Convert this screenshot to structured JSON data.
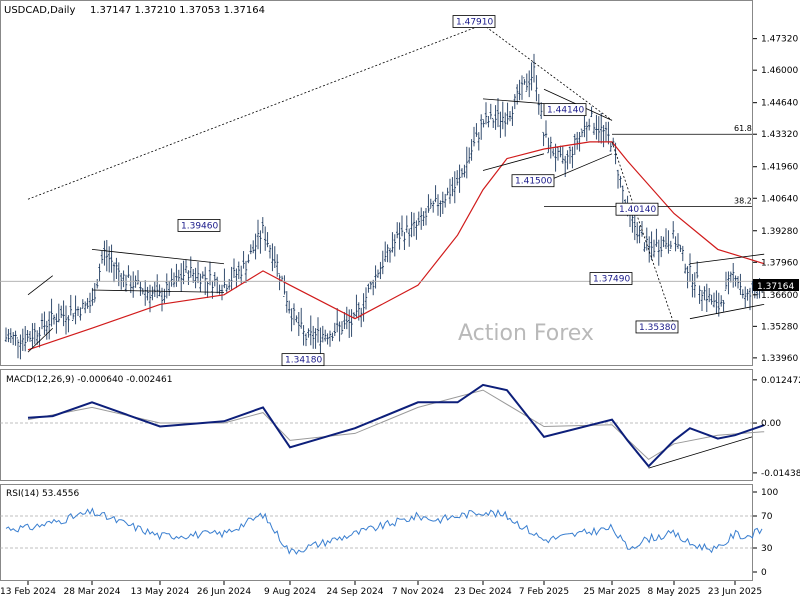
{
  "header": {
    "symbol": "USDCAD,Daily",
    "ohlc": "1.37147 1.37210 1.37053 1.37164"
  },
  "watermark": "Action Forex",
  "current_price": "1.37164",
  "chart_data": [
    {
      "type": "line",
      "panel": "price",
      "y_axis_ticks": [
        "1.47320",
        "1.46000",
        "1.44640",
        "1.43320",
        "1.41960",
        "1.40640",
        "1.39280",
        "1.37960",
        "1.36600",
        "1.35280",
        "1.33960"
      ],
      "x_axis_ticks": [
        "13 Feb 2024",
        "28 Mar 2024",
        "13 May 2024",
        "26 Jun 2024",
        "9 Aug 2024",
        "24 Sep 2024",
        "7 Nov 2024",
        "23 Dec 2024",
        "7 Feb 2025",
        "25 Mar 2025",
        "8 May 2025",
        "23 Jun 2025"
      ],
      "ylim": [
        1.3362,
        1.481
      ],
      "annotations": [
        {
          "label": "1.47910",
          "x": "23 Dec 2024",
          "y": 1.4791
        },
        {
          "label": "1.44140",
          "x": "7 Feb 2025",
          "y": 1.4414
        },
        {
          "label": "1.41500",
          "x": "7 Feb 2025",
          "y": 1.415
        },
        {
          "label": "1.40140",
          "x": "25 Mar 2025",
          "y": 1.4014
        },
        {
          "label": "1.39460",
          "x": "26 Jun 2024",
          "y": 1.3946
        },
        {
          "label": "1.37490",
          "x": "25 Mar 2025",
          "y": 1.3749
        },
        {
          "label": "1.35380",
          "x": "8 May 2025",
          "y": 1.3538
        },
        {
          "label": "1.34180",
          "x": "9 Aug 2024",
          "y": 1.3418
        }
      ],
      "fib_levels": [
        {
          "label": "61.8",
          "y": 1.4332
        },
        {
          "label": "38.2",
          "y": 1.403
        }
      ],
      "price_path": [
        [
          "13 Feb 2024",
          1.348
        ],
        [
          "1 Mar 2024",
          1.356
        ],
        [
          "28 Mar 2024",
          1.362
        ],
        [
          "5 Apr 2024",
          1.384
        ],
        [
          "20 Apr 2024",
          1.372
        ],
        [
          "13 May 2024",
          1.365
        ],
        [
          "1 Jun 2024",
          1.376
        ],
        [
          "26 Jun 2024",
          1.37
        ],
        [
          "10 Jul 2024",
          1.378
        ],
        [
          "22 Jul 2024",
          1.393
        ],
        [
          "1 Aug 2024",
          1.378
        ],
        [
          "9 Aug 2024",
          1.36
        ],
        [
          "20 Aug 2024",
          1.348
        ],
        [
          "5 Sep 2024",
          1.35
        ],
        [
          "24 Sep 2024",
          1.355
        ],
        [
          "10 Oct 2024",
          1.376
        ],
        [
          "25 Oct 2024",
          1.391
        ],
        [
          "7 Nov 2024",
          1.395
        ],
        [
          "20 Nov 2024",
          1.404
        ],
        [
          "5 Dec 2024",
          1.412
        ],
        [
          "23 Dec 2024",
          1.438
        ],
        [
          "10 Jan 2025",
          1.441
        ],
        [
          "31 Jan 2025",
          1.46
        ],
        [
          "7 Feb 2025",
          1.432
        ],
        [
          "20 Feb 2025",
          1.42
        ],
        [
          "10 Mar 2025",
          1.44
        ],
        [
          "25 Mar 2025",
          1.43
        ],
        [
          "5 Apr 2025",
          1.4
        ],
        [
          "20 Apr 2025",
          1.385
        ],
        [
          "8 May 2025",
          1.39
        ],
        [
          "20 May 2025",
          1.375
        ],
        [
          "10 Jun 2025",
          1.36
        ],
        [
          "23 Jun 2025",
          1.376
        ],
        [
          "1 Jul 2025",
          1.364
        ],
        [
          "15 Jul 2025",
          1.3716
        ]
      ],
      "ma_path": [
        [
          "13 Feb 2024",
          1.343
        ],
        [
          "28 Mar 2024",
          1.352
        ],
        [
          "13 May 2024",
          1.362
        ],
        [
          "26 Jun 2024",
          1.366
        ],
        [
          "22 Jul 2024",
          1.376
        ],
        [
          "9 Aug 2024",
          1.37
        ],
        [
          "24 Sep 2024",
          1.356
        ],
        [
          "7 Nov 2024",
          1.37
        ],
        [
          "5 Dec 2024",
          1.391
        ],
        [
          "23 Dec 2024",
          1.41
        ],
        [
          "10 Jan 2025",
          1.423
        ],
        [
          "7 Feb 2025",
          1.427
        ],
        [
          "10 Mar 2025",
          1.43
        ],
        [
          "25 Mar 2025",
          1.43
        ],
        [
          "5 Apr 2025",
          1.422
        ],
        [
          "8 May 2025",
          1.4
        ],
        [
          "10 Jun 2025",
          1.385
        ],
        [
          "15 Jul 2025",
          1.379
        ]
      ]
    },
    {
      "type": "line",
      "panel": "macd",
      "title": "MACD(12,26,9) -0.000640 -0.002461",
      "y_axis_ticks": [
        "0.012472",
        "0.00",
        "-0.014389"
      ],
      "ylim": [
        -0.015,
        0.013
      ],
      "macd_path": [
        [
          "13 Feb 2024",
          0.0015
        ],
        [
          "1 Mar 2024",
          0.002
        ],
        [
          "28 Mar 2024",
          0.006
        ],
        [
          "13 May 2024",
          -0.001
        ],
        [
          "26 Jun 2024",
          0.0005
        ],
        [
          "22 Jul 2024",
          0.0045
        ],
        [
          "9 Aug 2024",
          -0.007
        ],
        [
          "24 Sep 2024",
          -0.0015
        ],
        [
          "7 Nov 2024",
          0.006
        ],
        [
          "5 Dec 2024",
          0.006
        ],
        [
          "23 Dec 2024",
          0.011
        ],
        [
          "10 Jan 2025",
          0.0095
        ],
        [
          "7 Feb 2025",
          -0.004
        ],
        [
          "25 Mar 2025",
          0.001
        ],
        [
          "5 Apr 2025",
          -0.005
        ],
        [
          "20 Apr 2025",
          -0.0125
        ],
        [
          "8 May 2025",
          -0.005
        ],
        [
          "20 May 2025",
          -0.0015
        ],
        [
          "10 Jun 2025",
          -0.0045
        ],
        [
          "23 Jun 2025",
          -0.0035
        ],
        [
          "15 Jul 2025",
          -0.0006
        ]
      ],
      "signal_path": [
        [
          "13 Feb 2024",
          0.001
        ],
        [
          "28 Mar 2024",
          0.0045
        ],
        [
          "13 May 2024",
          0.0
        ],
        [
          "26 Jun 2024",
          0.0
        ],
        [
          "22 Jul 2024",
          0.003
        ],
        [
          "9 Aug 2024",
          -0.005
        ],
        [
          "24 Sep 2024",
          -0.003
        ],
        [
          "7 Nov 2024",
          0.0045
        ],
        [
          "23 Dec 2024",
          0.0095
        ],
        [
          "7 Feb 2025",
          -0.001
        ],
        [
          "25 Mar 2025",
          -0.0005
        ],
        [
          "20 Apr 2025",
          -0.0105
        ],
        [
          "8 May 2025",
          -0.006
        ],
        [
          "10 Jun 2025",
          -0.0035
        ],
        [
          "15 Jul 2025",
          -0.0025
        ]
      ]
    },
    {
      "type": "line",
      "panel": "rsi",
      "title": "RSI(14) 53.4556",
      "y_axis_ticks": [
        "100",
        "70",
        "30",
        "0"
      ],
      "ylim": [
        0,
        100
      ],
      "rsi_path": [
        [
          "13 Feb 2024",
          55
        ],
        [
          "1 Mar 2024",
          62
        ],
        [
          "28 Mar 2024",
          75
        ],
        [
          "13 May 2024",
          45
        ],
        [
          "26 Jun 2024",
          48
        ],
        [
          "22 Jul 2024",
          72
        ],
        [
          "9 Aug 2024",
          25
        ],
        [
          "24 Sep 2024",
          48
        ],
        [
          "7 Nov 2024",
          70
        ],
        [
          "20 Nov 2024",
          65
        ],
        [
          "23 Dec 2024",
          76
        ],
        [
          "10 Jan 2025",
          70
        ],
        [
          "7 Feb 2025",
          40
        ],
        [
          "25 Mar 2025",
          55
        ],
        [
          "5 Apr 2025",
          30
        ],
        [
          "20 Apr 2025",
          42
        ],
        [
          "8 May 2025",
          48
        ],
        [
          "20 May 2025",
          35
        ],
        [
          "10 Jun 2025",
          28
        ],
        [
          "23 Jun 2025",
          48
        ],
        [
          "1 Jul 2025",
          44
        ],
        [
          "15 Jul 2025",
          53.46
        ]
      ]
    }
  ]
}
